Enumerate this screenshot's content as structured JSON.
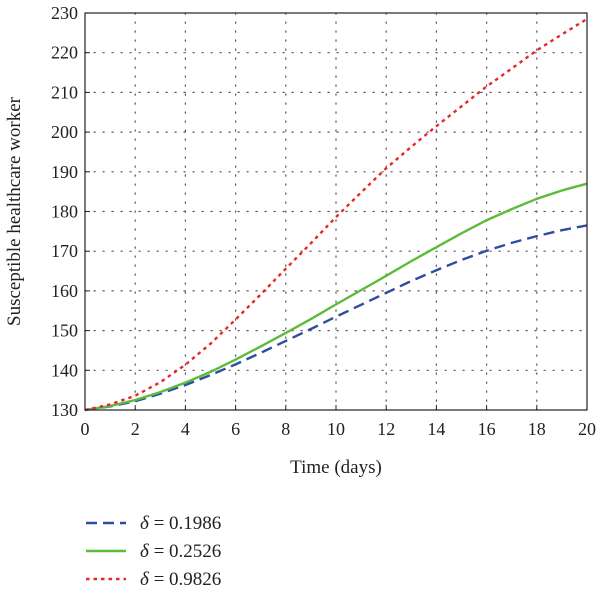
{
  "chart_data": {
    "type": "line",
    "xlabel": "Time (days)",
    "ylabel": "Susceptible healthcare worker",
    "xlim": [
      0,
      20
    ],
    "ylim": [
      130,
      230
    ],
    "xticks": [
      0,
      2,
      4,
      6,
      8,
      10,
      12,
      14,
      16,
      18,
      20
    ],
    "yticks": [
      130,
      140,
      150,
      160,
      170,
      180,
      190,
      200,
      210,
      220,
      230
    ],
    "grid": "dotted",
    "legend_position": "below",
    "x": [
      0,
      1,
      2,
      3,
      4,
      5,
      6,
      7,
      8,
      9,
      10,
      11,
      12,
      13,
      14,
      15,
      16,
      17,
      18,
      19,
      20
    ],
    "series": [
      {
        "name": "δ = 0.1986",
        "legend_symbol": "δ",
        "legend_value": "= 0.1986",
        "color": "#2e4d9e",
        "style": "dashed",
        "values": [
          130.0,
          130.9,
          132.2,
          134.1,
          136.3,
          138.8,
          141.5,
          144.4,
          147.4,
          150.4,
          153.5,
          156.5,
          159.5,
          162.5,
          165.2,
          167.8,
          170.1,
          172.1,
          173.8,
          175.3,
          176.5
        ]
      },
      {
        "name": "δ = 0.2526",
        "legend_symbol": "δ",
        "legend_value": "= 0.2526",
        "color": "#5dbb3b",
        "style": "solid",
        "values": [
          130.0,
          131.0,
          132.5,
          134.5,
          136.9,
          139.6,
          142.7,
          146.0,
          149.4,
          152.9,
          156.6,
          160.2,
          163.8,
          167.5,
          171.0,
          174.5,
          177.8,
          180.6,
          183.2,
          185.3,
          187.0
        ]
      },
      {
        "name": "δ = 0.9826",
        "legend_symbol": "δ",
        "legend_value": "= 0.9826",
        "color": "#e8262b",
        "style": "dotted",
        "values": [
          130.0,
          131.4,
          133.6,
          137.0,
          141.4,
          146.7,
          152.8,
          159.1,
          165.6,
          172.0,
          178.6,
          184.8,
          190.9,
          196.3,
          201.5,
          206.5,
          211.5,
          216.0,
          220.6,
          224.6,
          228.5
        ]
      }
    ]
  }
}
